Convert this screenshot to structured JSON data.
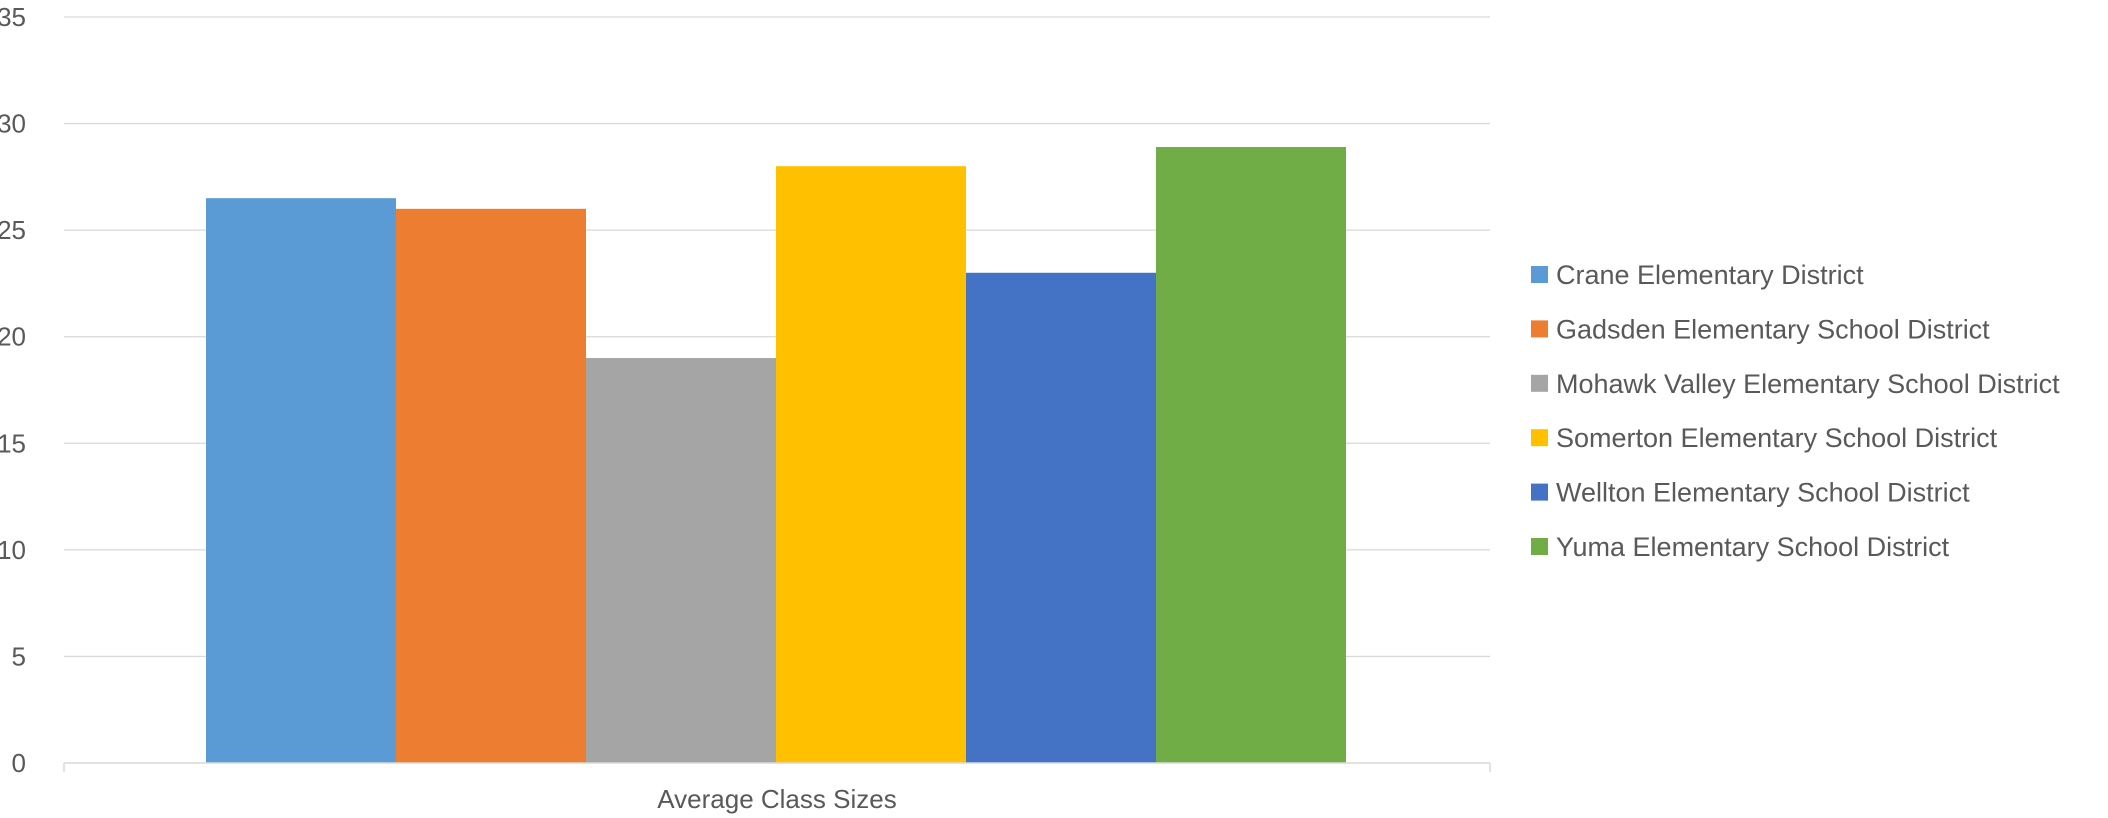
{
  "chart_data": {
    "type": "bar",
    "categories": [
      "Average Class Sizes"
    ],
    "series": [
      {
        "name": "Crane Elementary District",
        "values": [
          26.5
        ],
        "color": "#5B9BD5"
      },
      {
        "name": "Gadsden Elementary School District",
        "values": [
          26
        ],
        "color": "#ED7D31"
      },
      {
        "name": "Mohawk Valley Elementary School District",
        "values": [
          19
        ],
        "color": "#A5A5A5"
      },
      {
        "name": "Somerton Elementary School District",
        "values": [
          28
        ],
        "color": "#FFC000"
      },
      {
        "name": "Wellton Elementary School District",
        "values": [
          23
        ],
        "color": "#4472C4"
      },
      {
        "name": "Yuma Elementary School District",
        "values": [
          28.9
        ],
        "color": "#70AD47"
      }
    ],
    "yticks": [
      "0",
      "5",
      "10",
      "15",
      "20",
      "25",
      "30",
      "35"
    ],
    "ylim": [
      0,
      35
    ],
    "grid": true,
    "legend_position": "right",
    "title": "",
    "xlabel": "",
    "ylabel": ""
  }
}
